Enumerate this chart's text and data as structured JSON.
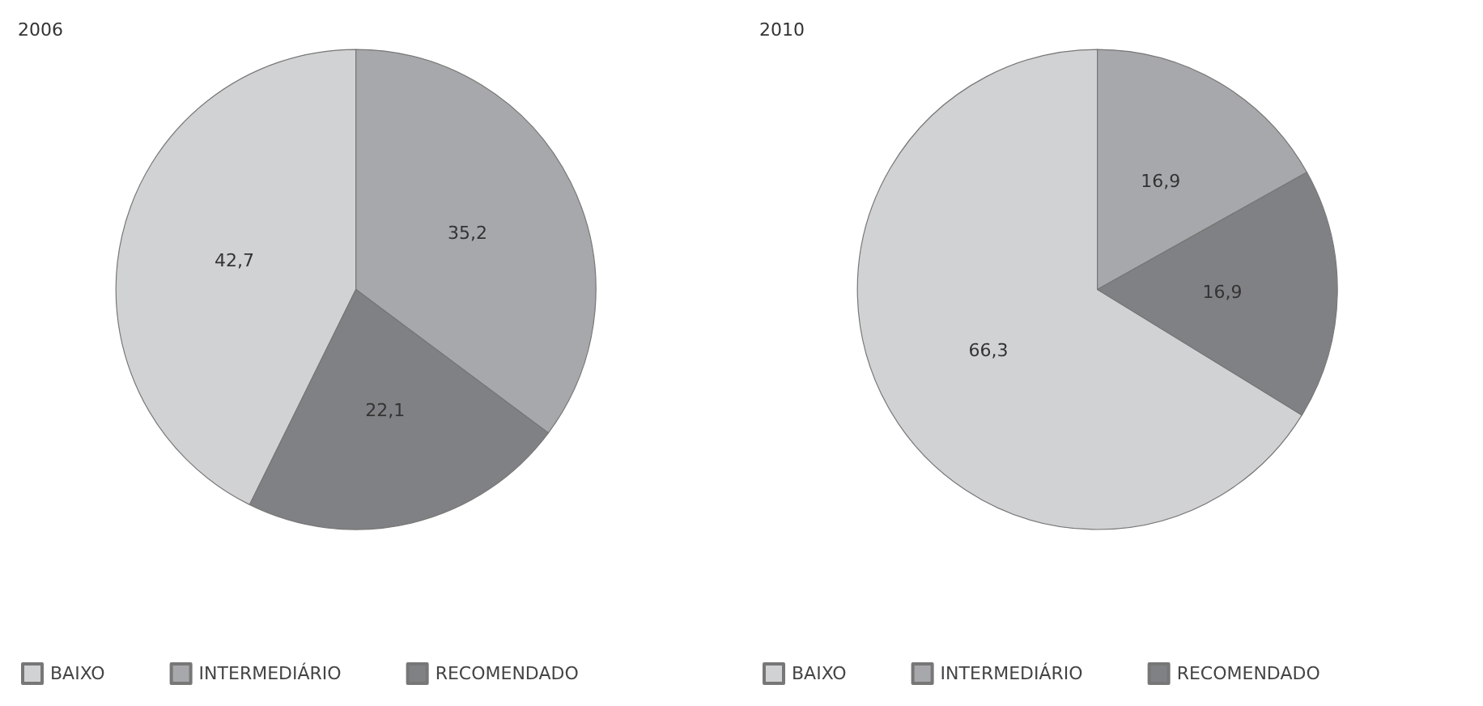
{
  "chart_data": [
    {
      "type": "pie",
      "title": "2006",
      "categories": [
        "BAIXO",
        "INTERMEDIÁRIO",
        "RECOMENDADO"
      ],
      "values": [
        42.7,
        35.2,
        22.1
      ],
      "colors": [
        "#d1d2d4",
        "#a7a8ab",
        "#808184"
      ],
      "value_labels": [
        "42,7",
        "35,2",
        "22,1"
      ],
      "legend": "bottom"
    },
    {
      "type": "pie",
      "title": "2010",
      "categories": [
        "BAIXO",
        "INTERMEDIÁRIO",
        "RECOMENDADO"
      ],
      "values": [
        66.3,
        16.9,
        16.9
      ],
      "colors": [
        "#d1d2d4",
        "#a7a8ab",
        "#808184"
      ],
      "value_labels": [
        "66,3",
        "16,9",
        "16,9"
      ],
      "legend": "bottom"
    }
  ]
}
